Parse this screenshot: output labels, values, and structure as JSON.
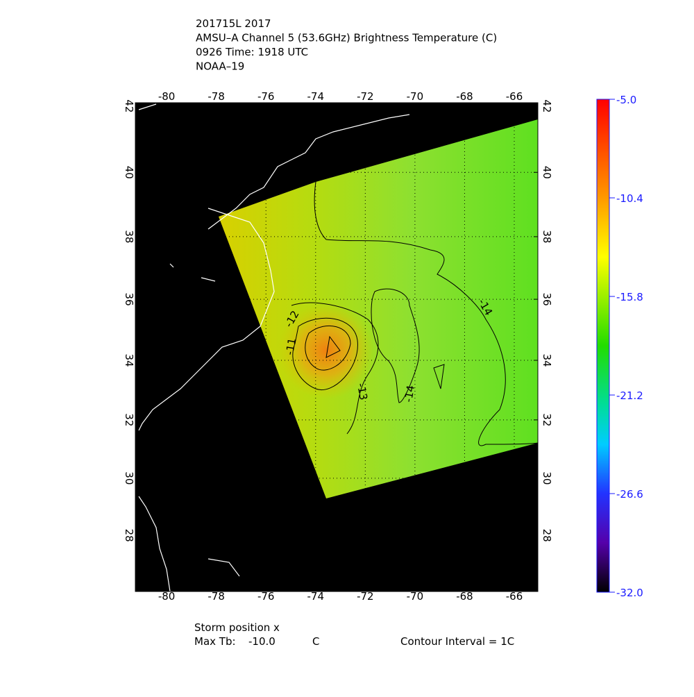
{
  "header": {
    "lines": [
      "201715L 2017",
      "AMSU–A Channel 5 (53.6GHz) Brightness Temperature (C)",
      "0926 Time: 1918 UTC",
      "NOAA–19"
    ]
  },
  "map": {
    "xlim": [
      -81.26,
      -65.05
    ],
    "ylim": [
      26.0,
      42.1
    ],
    "xticks": [
      -80,
      -78,
      -76,
      -74,
      -72,
      -70,
      -68,
      -66
    ],
    "yticks": [
      42,
      40,
      38,
      36,
      34,
      32,
      30,
      28
    ],
    "contour_labels": [
      "-14",
      "-14",
      "-13",
      "-12",
      "-11"
    ]
  },
  "colorbar": {
    "lim": [
      -32,
      -5
    ],
    "ticks": [
      {
        "value": -5,
        "label": "-5.0"
      },
      -10.4,
      -15.8,
      -21.2,
      -26.6,
      {
        "value": -32,
        "label": "-32.0"
      }
    ]
  },
  "footer": {
    "storm_position": "Storm position x",
    "max_tb_label": "Max Tb:",
    "max_tb": "-10.0",
    "max_tb_unit": "C",
    "contour_interval": "Contour Interval = 1C"
  }
}
